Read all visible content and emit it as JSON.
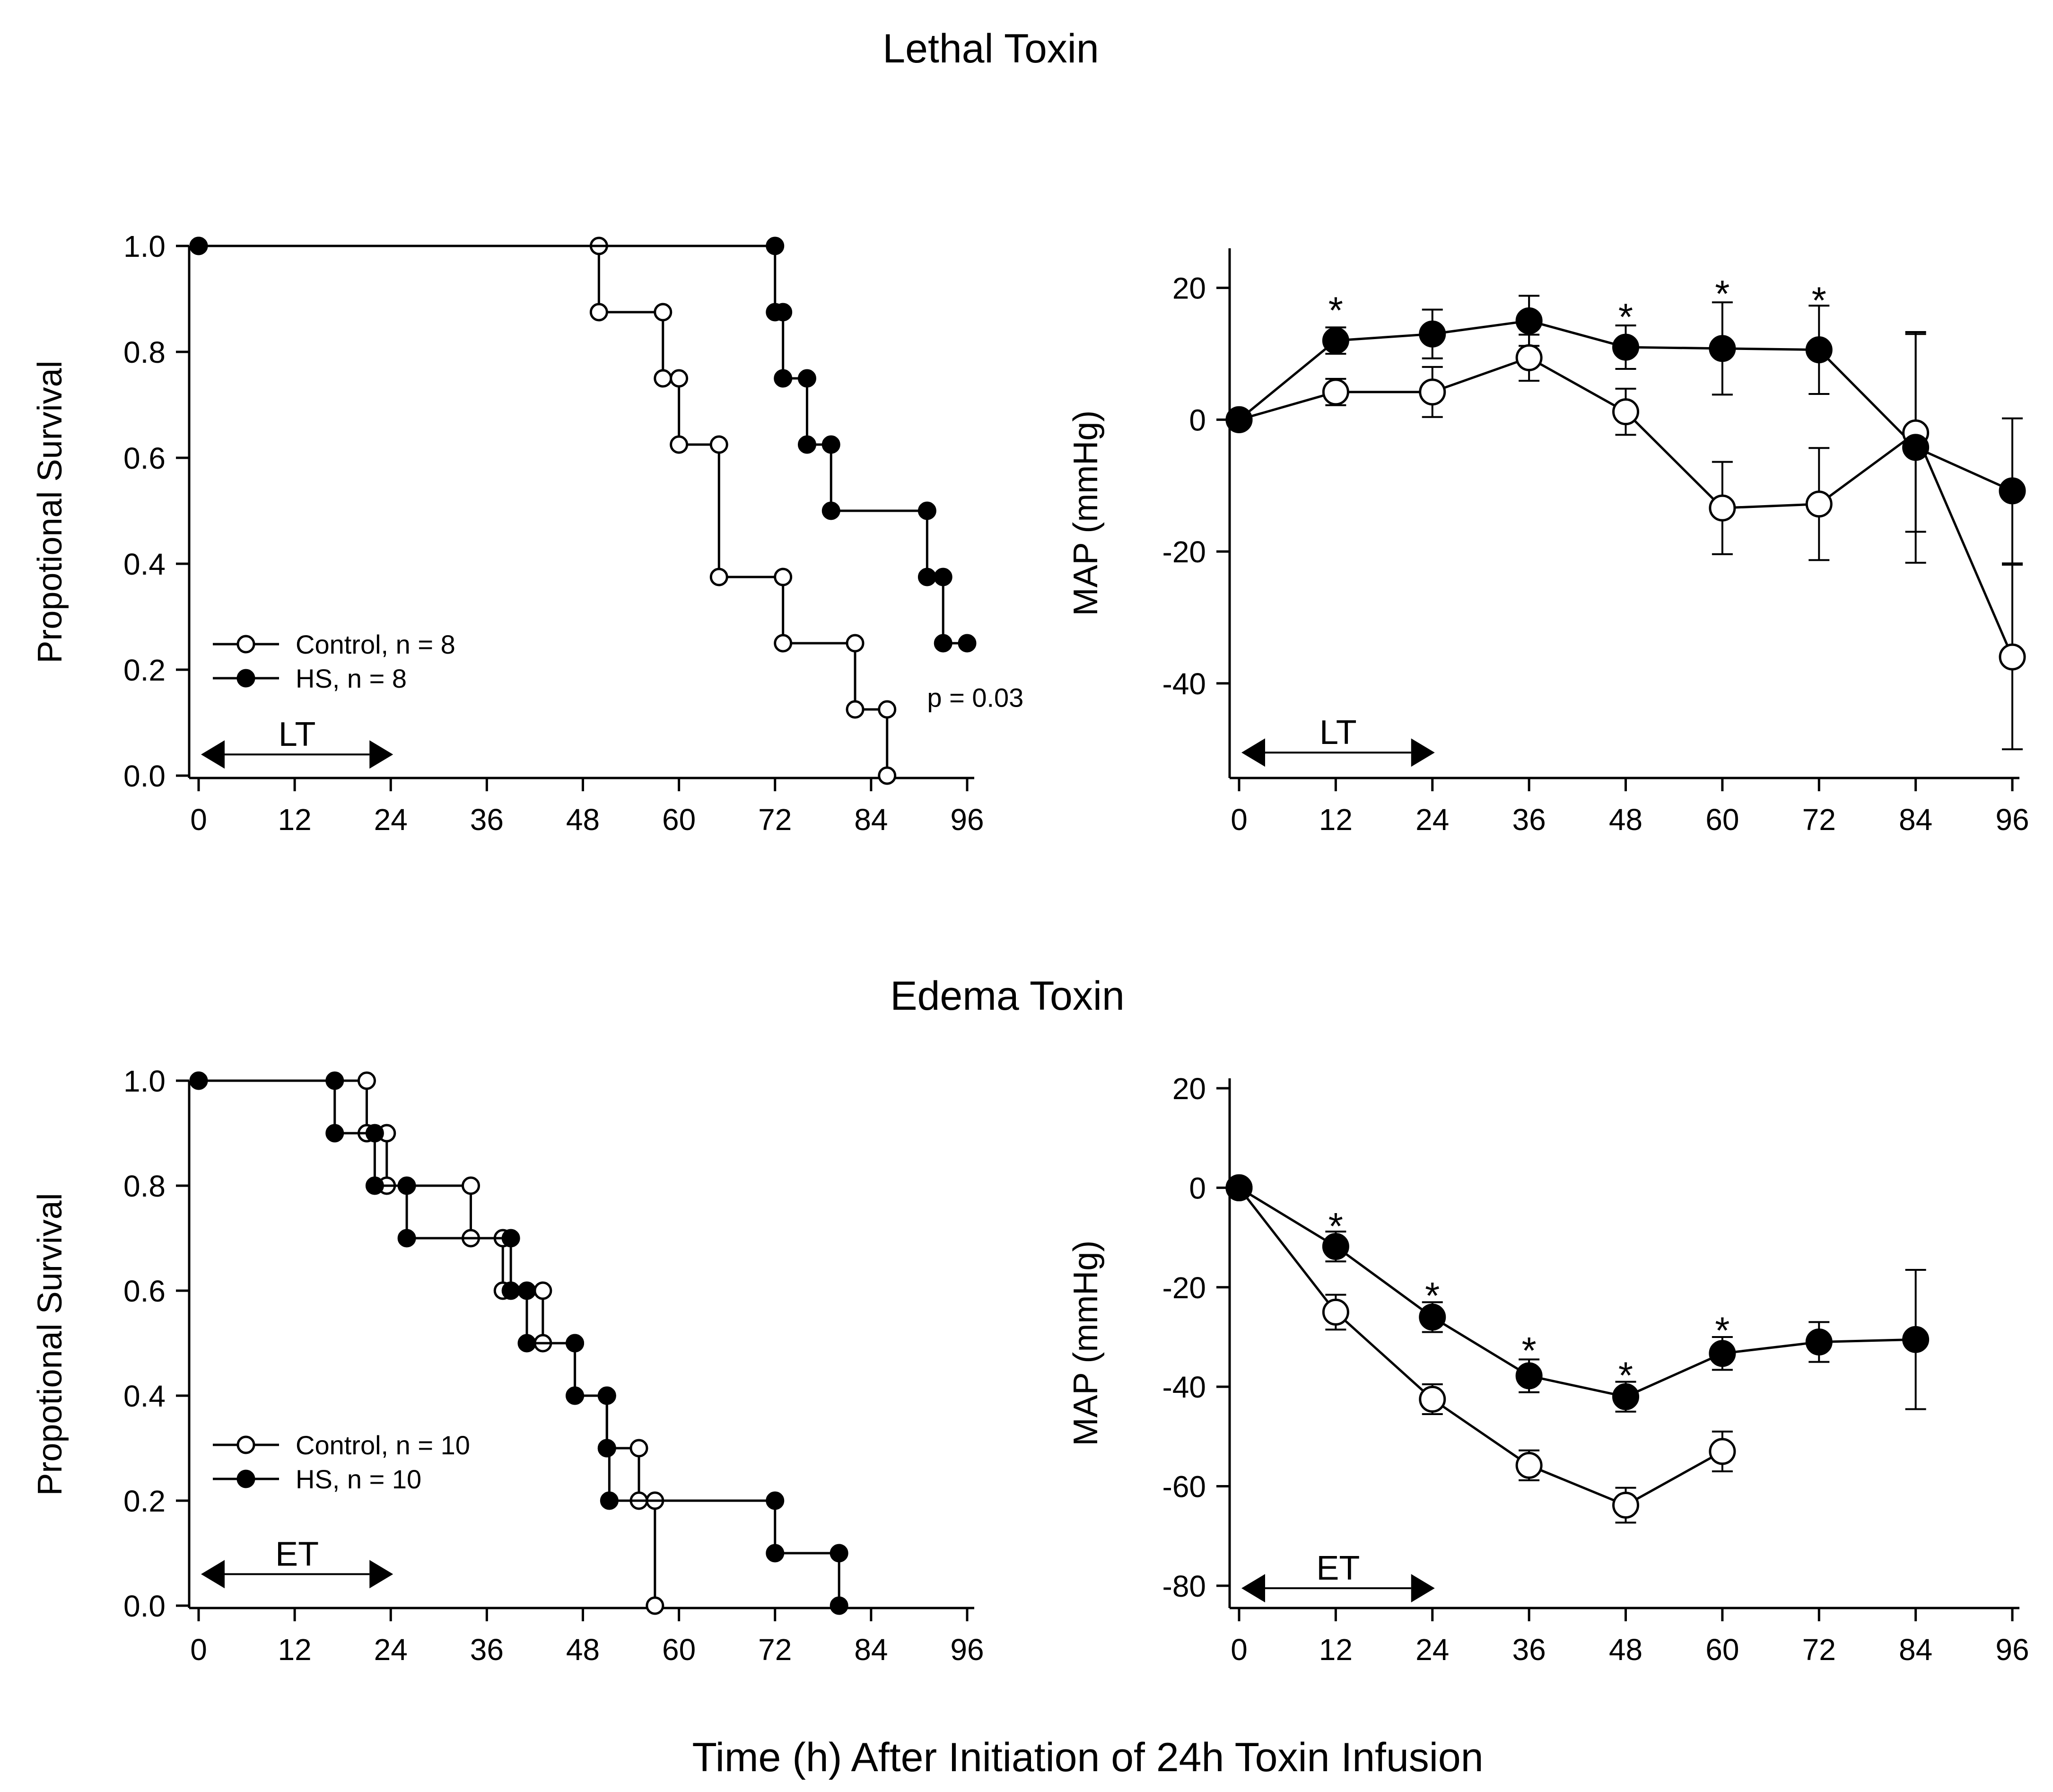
{
  "figure": {
    "section_titles": [
      "Lethal Toxin",
      "Edema Toxin"
    ],
    "global_xlabel": "Time (h) After Initiation of 24h Toxin Infusion"
  },
  "chart_data": [
    {
      "id": "lt-survival",
      "type": "line",
      "subtype": "kaplan-meier",
      "title": "",
      "xlabel": "",
      "ylabel": "Propotional Survival",
      "xlim": [
        0,
        96
      ],
      "ylim": [
        0,
        1
      ],
      "xticks": [
        0,
        12,
        24,
        36,
        48,
        60,
        72,
        84,
        96
      ],
      "yticks": [
        0.0,
        0.2,
        0.4,
        0.6,
        0.8,
        1.0
      ],
      "ytick_labels": [
        "0.0",
        "0.2",
        "0.4",
        "0.6",
        "0.8",
        "1.0"
      ],
      "legend_position": "lower-left",
      "series": [
        {
          "name": "Control, n = 8",
          "marker": "open-circle",
          "steps": [
            [
              0,
              1.0
            ],
            [
              50,
              0.875
            ],
            [
              58,
              0.75
            ],
            [
              60,
              0.625
            ],
            [
              65,
              0.375
            ],
            [
              73,
              0.25
            ],
            [
              82,
              0.125
            ],
            [
              86,
              0.0
            ]
          ],
          "markers": [
            [
              0,
              1.0
            ],
            [
              50,
              1.0
            ],
            [
              50,
              0.875
            ],
            [
              58,
              0.875
            ],
            [
              58,
              0.75
            ],
            [
              60,
              0.75
            ],
            [
              60,
              0.625
            ],
            [
              65,
              0.625
            ],
            [
              65,
              0.375
            ],
            [
              73,
              0.375
            ],
            [
              73,
              0.25
            ],
            [
              82,
              0.25
            ],
            [
              82,
              0.125
            ],
            [
              86,
              0.125
            ],
            [
              86,
              0.0
            ]
          ]
        },
        {
          "name": "HS, n = 8",
          "marker": "filled-circle",
          "steps": [
            [
              0,
              1.0
            ],
            [
              72,
              0.875
            ],
            [
              73,
              0.75
            ],
            [
              76,
              0.625
            ],
            [
              79,
              0.5
            ],
            [
              91,
              0.375
            ],
            [
              93,
              0.25
            ]
          ],
          "end_x": 96,
          "markers": [
            [
              0,
              1.0
            ],
            [
              72,
              1.0
            ],
            [
              72,
              0.875
            ],
            [
              73,
              0.875
            ],
            [
              73,
              0.75
            ],
            [
              76,
              0.75
            ],
            [
              76,
              0.625
            ],
            [
              79,
              0.625
            ],
            [
              79,
              0.5
            ],
            [
              91,
              0.5
            ],
            [
              91,
              0.375
            ],
            [
              93,
              0.375
            ],
            [
              93,
              0.25
            ],
            [
              96,
              0.25
            ]
          ]
        }
      ],
      "annotations": [
        {
          "text": "p = 0.03",
          "x": 91,
          "y": 0.13
        }
      ],
      "range_marker": {
        "label": "LT",
        "from": 0,
        "to": 24,
        "y": 0.04
      }
    },
    {
      "id": "lt-map",
      "type": "line",
      "title": "",
      "xlabel": "",
      "ylabel": "MAP (mmHg)",
      "xlim": [
        0,
        96
      ],
      "ylim": [
        -54,
        26
      ],
      "xticks": [
        0,
        12,
        24,
        36,
        48,
        60,
        72,
        84,
        96
      ],
      "yticks": [
        -40,
        -20,
        0,
        20
      ],
      "ytick_labels": [
        "-40",
        "-20",
        "0",
        "20"
      ],
      "series": [
        {
          "name": "Control",
          "marker": "open-circle",
          "x": [
            0,
            12,
            24,
            36,
            48,
            60,
            72,
            84,
            96
          ],
          "y": [
            0,
            4.2,
            4.2,
            9.4,
            1.2,
            -13.4,
            -12.8,
            -2,
            -36
          ],
          "err": [
            0,
            2,
            3.8,
            3.5,
            3.5,
            7,
            8.5,
            15,
            14
          ]
        },
        {
          "name": "HS",
          "marker": "filled-circle",
          "x": [
            0,
            12,
            24,
            36,
            48,
            60,
            72,
            84,
            96
          ],
          "y": [
            0,
            12,
            13,
            15,
            11,
            10.8,
            10.6,
            -4.2,
            -10.8
          ],
          "err": [
            0,
            2,
            3.7,
            3.8,
            3.3,
            7,
            6.7,
            17.5,
            11
          ]
        }
      ],
      "significance": [
        {
          "x": 12,
          "y": 17.5,
          "text": "*"
        },
        {
          "x": 48,
          "y": 16.5,
          "text": "*"
        },
        {
          "x": 60,
          "y": 20,
          "text": "*"
        },
        {
          "x": 72,
          "y": 19,
          "text": "*"
        }
      ],
      "range_marker": {
        "label": "LT",
        "from": 0,
        "to": 24,
        "y": -50.5
      }
    },
    {
      "id": "et-survival",
      "type": "line",
      "subtype": "kaplan-meier",
      "title": "",
      "xlabel": "",
      "ylabel": "Propotional Survival",
      "xlim": [
        0,
        96
      ],
      "ylim": [
        0,
        1
      ],
      "xticks": [
        0,
        12,
        24,
        36,
        48,
        60,
        72,
        84,
        96
      ],
      "yticks": [
        0.0,
        0.2,
        0.4,
        0.6,
        0.8,
        1.0
      ],
      "ytick_labels": [
        "0.0",
        "0.2",
        "0.4",
        "0.6",
        "0.8",
        "1.0"
      ],
      "legend_position": "lower-left",
      "series": [
        {
          "name": "Control, n = 10",
          "marker": "open-circle",
          "steps": [
            [
              0,
              1.0
            ],
            [
              21,
              0.9
            ],
            [
              23.5,
              0.8
            ],
            [
              34,
              0.7
            ],
            [
              38,
              0.6
            ],
            [
              43,
              0.5
            ],
            [
              47,
              0.4
            ],
            [
              51,
              0.3
            ],
            [
              55,
              0.2
            ],
            [
              57,
              0.0
            ]
          ],
          "markers": [
            [
              0,
              1.0
            ],
            [
              21,
              1.0
            ],
            [
              21,
              0.9
            ],
            [
              23.5,
              0.9
            ],
            [
              23.5,
              0.8
            ],
            [
              34,
              0.8
            ],
            [
              34,
              0.7
            ],
            [
              38,
              0.7
            ],
            [
              38,
              0.6
            ],
            [
              43,
              0.6
            ],
            [
              43,
              0.5
            ],
            [
              47,
              0.5
            ],
            [
              47,
              0.4
            ],
            [
              51,
              0.4
            ],
            [
              51,
              0.3
            ],
            [
              55,
              0.3
            ],
            [
              55,
              0.2
            ],
            [
              57,
              0.2
            ],
            [
              57,
              0.0
            ]
          ]
        },
        {
          "name": "HS, n = 10",
          "marker": "filled-circle",
          "steps": [
            [
              0,
              1.0
            ],
            [
              17,
              0.9
            ],
            [
              22,
              0.8
            ],
            [
              26,
              0.7
            ],
            [
              39,
              0.6
            ],
            [
              41,
              0.5
            ],
            [
              47,
              0.4
            ],
            [
              51,
              0.3
            ],
            [
              51.3,
              0.2
            ],
            [
              72,
              0.1
            ],
            [
              80,
              0.0
            ]
          ],
          "markers": [
            [
              0,
              1.0
            ],
            [
              17,
              1.0
            ],
            [
              17,
              0.9
            ],
            [
              22,
              0.9
            ],
            [
              22,
              0.8
            ],
            [
              26,
              0.8
            ],
            [
              26,
              0.7
            ],
            [
              39,
              0.7
            ],
            [
              39,
              0.6
            ],
            [
              41,
              0.6
            ],
            [
              41,
              0.5
            ],
            [
              47,
              0.5
            ],
            [
              47,
              0.4
            ],
            [
              51,
              0.4
            ],
            [
              51,
              0.3
            ],
            [
              51.3,
              0.2
            ],
            [
              72,
              0.2
            ],
            [
              72,
              0.1
            ],
            [
              80,
              0.1
            ],
            [
              80,
              0.0
            ]
          ]
        }
      ],
      "range_marker": {
        "label": "ET",
        "from": 0,
        "to": 24,
        "y": 0.06
      }
    },
    {
      "id": "et-map",
      "type": "line",
      "title": "",
      "xlabel": "",
      "ylabel": "MAP (mmHg)",
      "xlim": [
        0,
        96
      ],
      "ylim": [
        -84,
        22
      ],
      "xticks": [
        0,
        12,
        24,
        36,
        48,
        60,
        72,
        84,
        96
      ],
      "yticks": [
        -80,
        -60,
        -40,
        -20,
        0,
        20
      ],
      "ytick_labels": [
        "-80",
        "-60",
        "-40",
        "-20",
        "0",
        "20"
      ],
      "series": [
        {
          "name": "Control",
          "marker": "open-circle",
          "x": [
            0,
            12,
            24,
            36,
            48,
            60
          ],
          "y": [
            0,
            -25,
            -42.5,
            -55.8,
            -63.8,
            -53
          ],
          "err": [
            0,
            3.5,
            3,
            3,
            3.5,
            4
          ]
        },
        {
          "name": "HS",
          "marker": "filled-circle",
          "x": [
            0,
            12,
            24,
            36,
            48,
            60,
            72,
            84
          ],
          "y": [
            0,
            -11.8,
            -26,
            -37.8,
            -42,
            -33.3,
            -31,
            -30.5
          ],
          "err": [
            0,
            3,
            3,
            3.3,
            3,
            3.3,
            4,
            14
          ]
        }
      ],
      "significance": [
        {
          "x": 12,
          "y": -6.5,
          "text": "*"
        },
        {
          "x": 24,
          "y": -20.5,
          "text": "*"
        },
        {
          "x": 36,
          "y": -31.5,
          "text": "*"
        },
        {
          "x": 48,
          "y": -36.5,
          "text": "*"
        },
        {
          "x": 60,
          "y": -27.5,
          "text": "*"
        }
      ],
      "range_marker": {
        "label": "ET",
        "from": 0,
        "to": 24,
        "y": -80.5
      }
    }
  ]
}
